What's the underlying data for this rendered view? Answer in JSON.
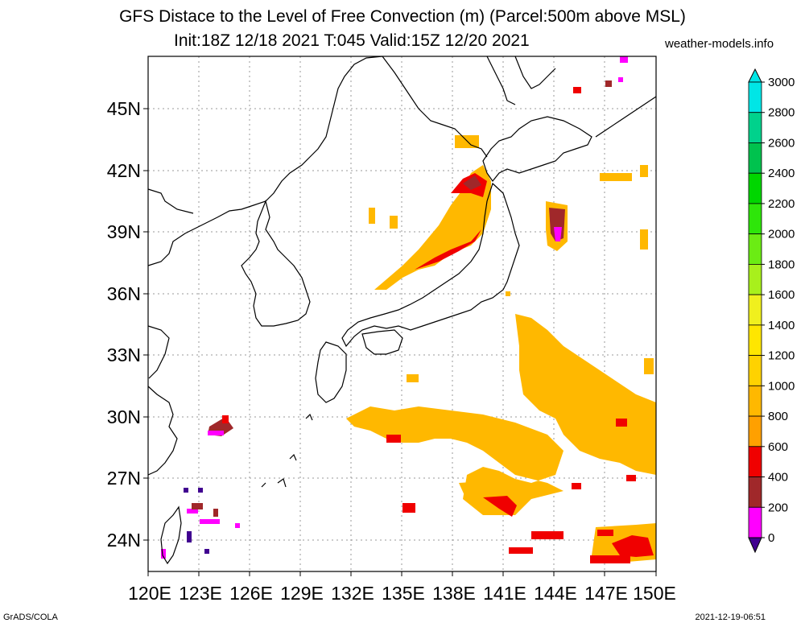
{
  "title": {
    "line1": "GFS Distace to the Level of Free Convection (m) (Parcel:500m above MSL)",
    "line2": "Init:18Z 12/18 2021 T:045 Valid:15Z 12/20 2021"
  },
  "source": "weather-models.info",
  "footer": {
    "left": "GrADS/COLA",
    "right": "2021-12-19-06:51"
  },
  "map": {
    "lat_labels": [
      "45N",
      "42N",
      "39N",
      "36N",
      "33N",
      "30N",
      "27N",
      "24N"
    ],
    "lon_labels": [
      "120E",
      "123E",
      "126E",
      "129E",
      "132E",
      "135E",
      "138E",
      "141E",
      "144E",
      "147E",
      "150E"
    ]
  },
  "colorbar": {
    "labels": [
      "3000",
      "2800",
      "2600",
      "2400",
      "2200",
      "2000",
      "1800",
      "1600",
      "1400",
      "1200",
      "1000",
      "800",
      "600",
      "400",
      "200",
      "0"
    ],
    "colors": [
      "#00e6e6",
      "#00d28c",
      "#00c24e",
      "#00d600",
      "#2ee60a",
      "#6bec14",
      "#a8f01c",
      "#f0f01e",
      "#ffe600",
      "#ffd200",
      "#ffb800",
      "#ffa000",
      "#f00000",
      "#a0282a",
      "#ff00ff",
      "#400090"
    ]
  }
}
